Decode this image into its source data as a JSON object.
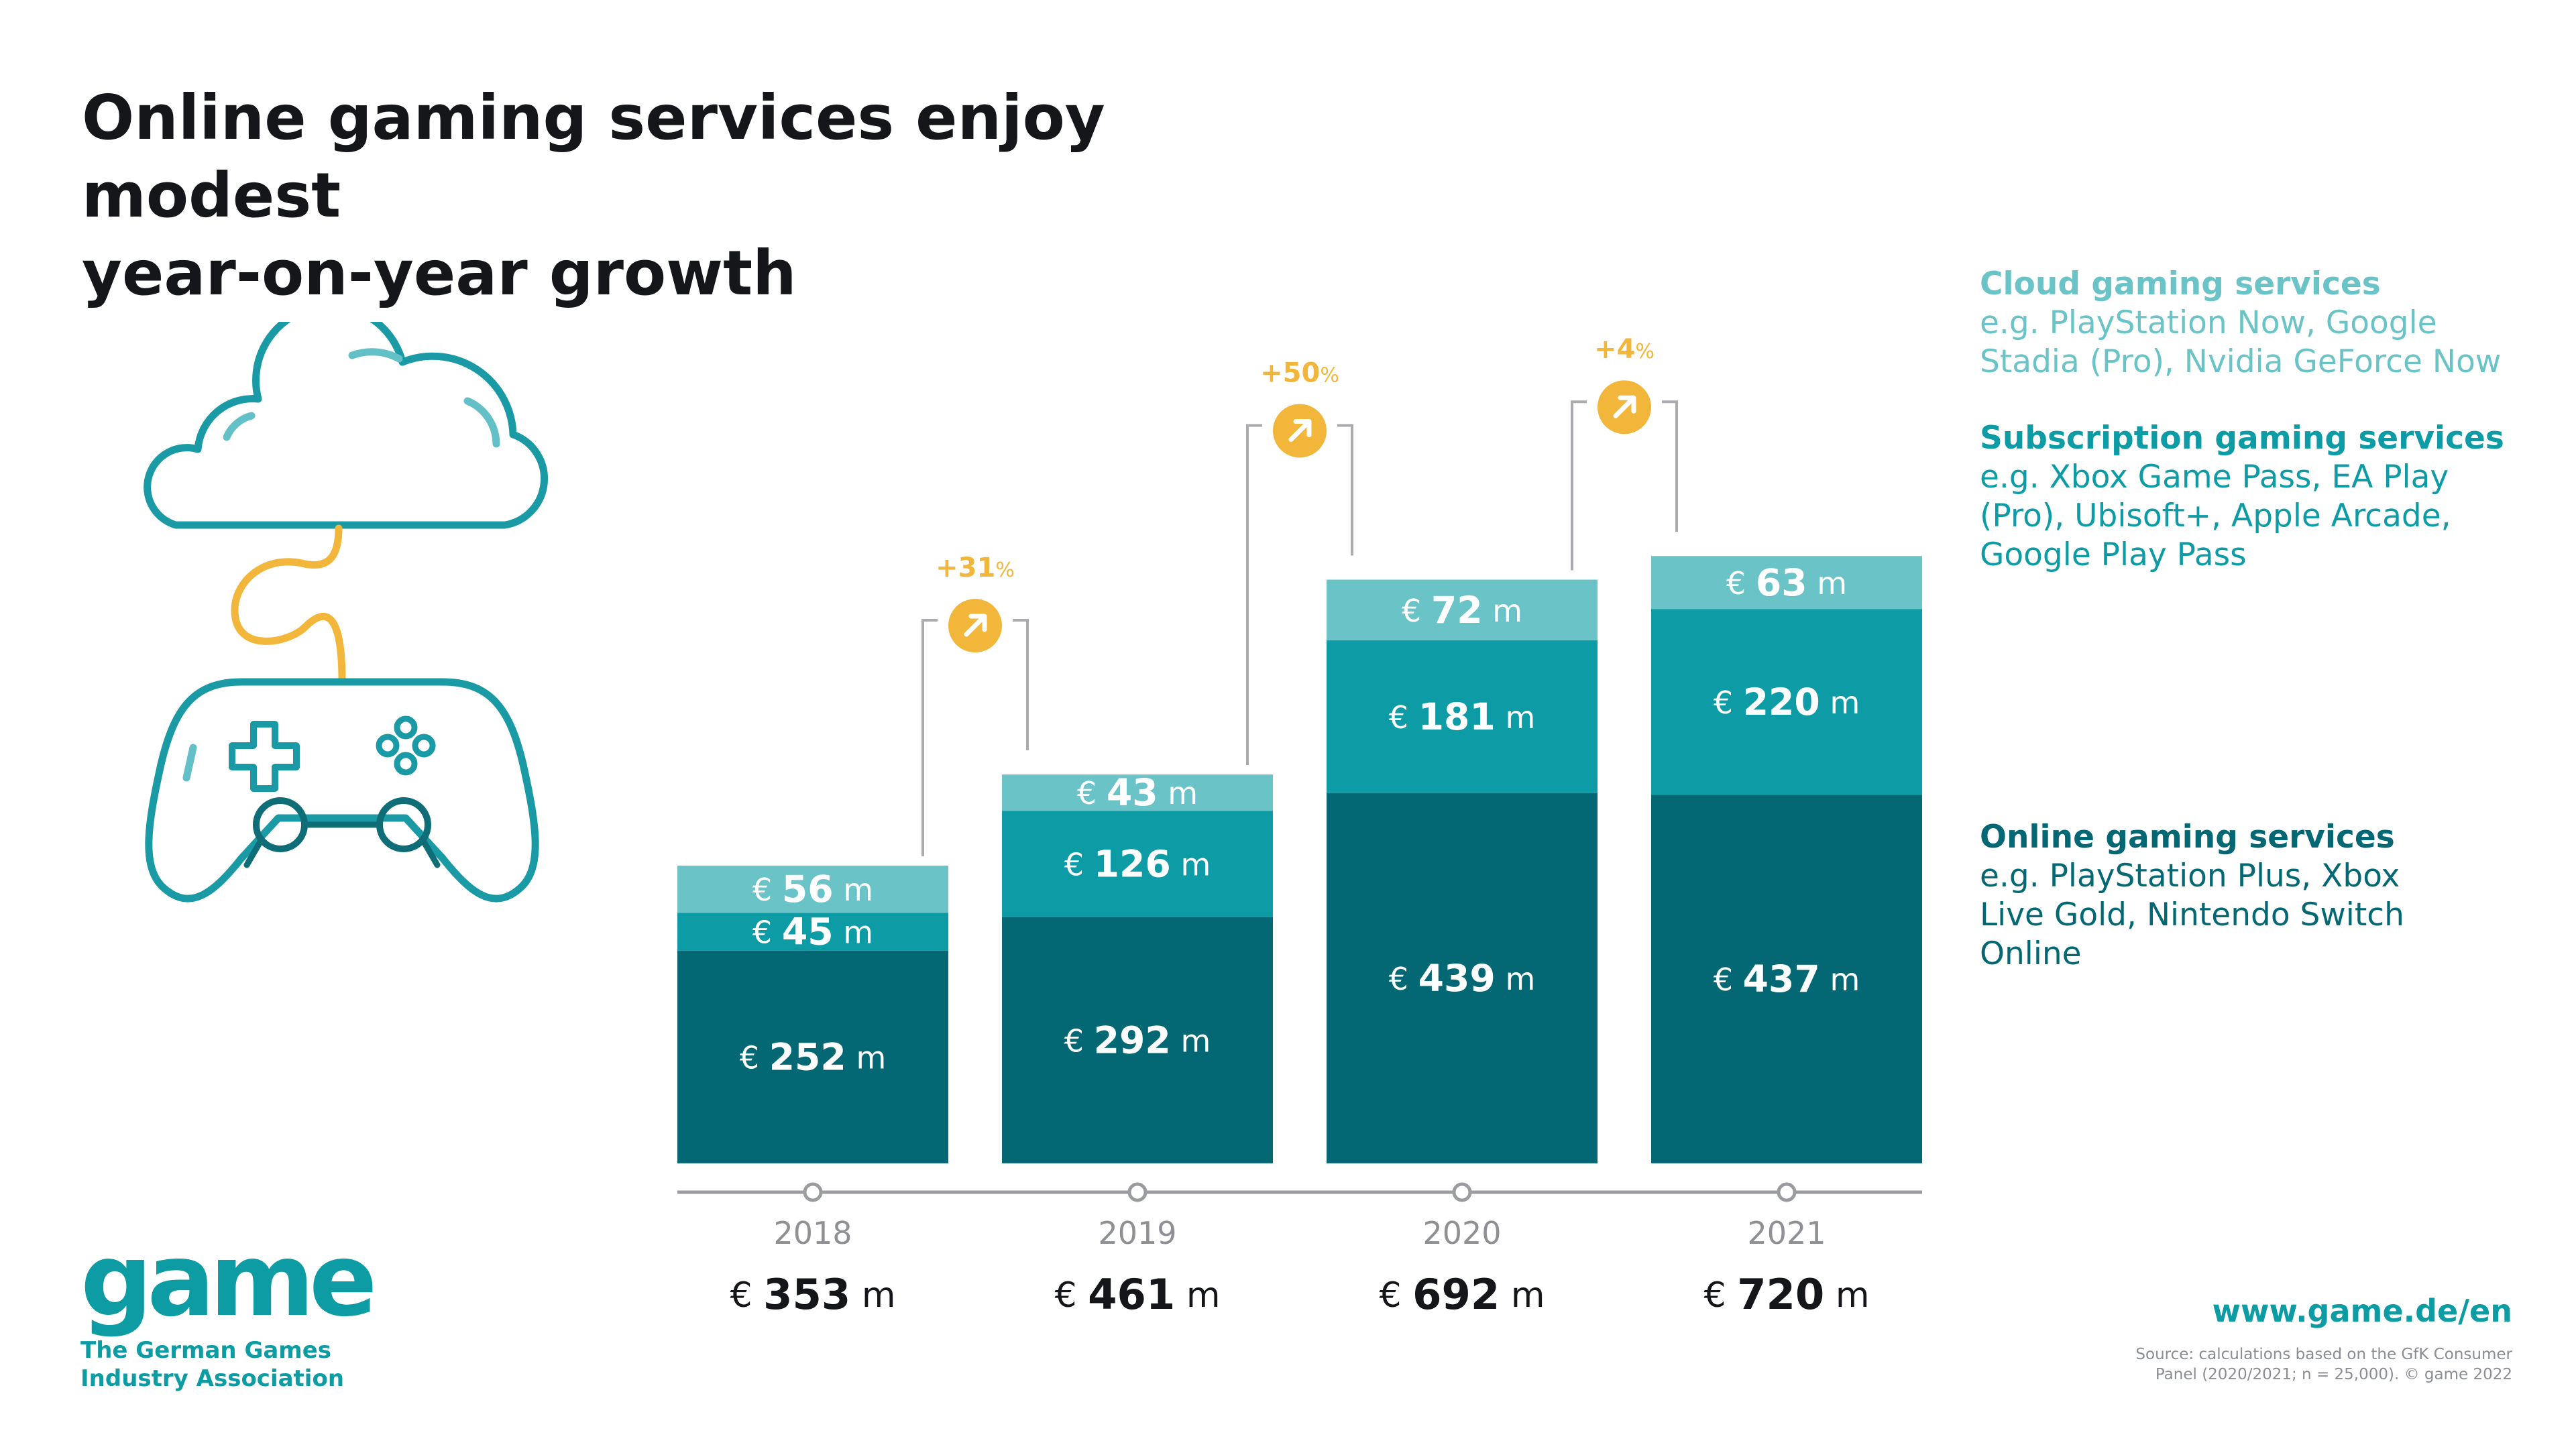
{
  "header": {
    "title_line1": "Online gaming services enjoy modest",
    "title_line2": "year-on-year growth"
  },
  "legend": {
    "cloud": {
      "title": "Cloud gaming services",
      "line1": "e.g. PlayStation Now, Google",
      "line2": "Stadia (Pro), Nvidia GeForce Now"
    },
    "subscription": {
      "title": "Subscription gaming services",
      "line1": "e.g. Xbox Game Pass, EA Play",
      "line2": "(Pro), Ubisoft+, Apple Arcade,",
      "line3": "Google Play Pass"
    },
    "online": {
      "title": "Online gaming services",
      "line1": "e.g. PlayStation Plus, Xbox",
      "line2": "Live Gold, Nintendo Switch",
      "line3": "Online"
    }
  },
  "colors": {
    "online": "#036873",
    "subscription": "#0d9ba6",
    "cloud": "#6ac3c7",
    "accent": "#f2b63a",
    "axis": "#9a9ca0",
    "brand": "#0d9ca3"
  },
  "icons": {
    "illustration": "cloud-gamepad-icon",
    "growth_arrow": "arrow-up-right-icon"
  },
  "chart_data": {
    "type": "bar",
    "stacked": true,
    "categories": [
      "2018",
      "2019",
      "2020",
      "2021"
    ],
    "series": [
      {
        "name": "Online gaming services",
        "values": [
          252,
          292,
          439,
          437
        ]
      },
      {
        "name": "Subscription gaming services",
        "values": [
          45,
          126,
          181,
          220
        ]
      },
      {
        "name": "Cloud gaming services",
        "values": [
          56,
          43,
          72,
          63
        ]
      }
    ],
    "totals": [
      353,
      461,
      692,
      720
    ],
    "growth_labels": [
      "+31",
      "+50",
      "+4"
    ],
    "growth_unit": "%",
    "currency": "€",
    "unit": "m",
    "ylim": [
      0,
      760
    ]
  },
  "footer": {
    "logo_word": "game",
    "logo_line1": "The German Games",
    "logo_line2": "Industry Association",
    "website": "www.game.de/en",
    "source_line1": "Source: calculations based on the GfK Consumer",
    "source_line2": "Panel (2020/2021; n = 25,000). © game 2022"
  }
}
